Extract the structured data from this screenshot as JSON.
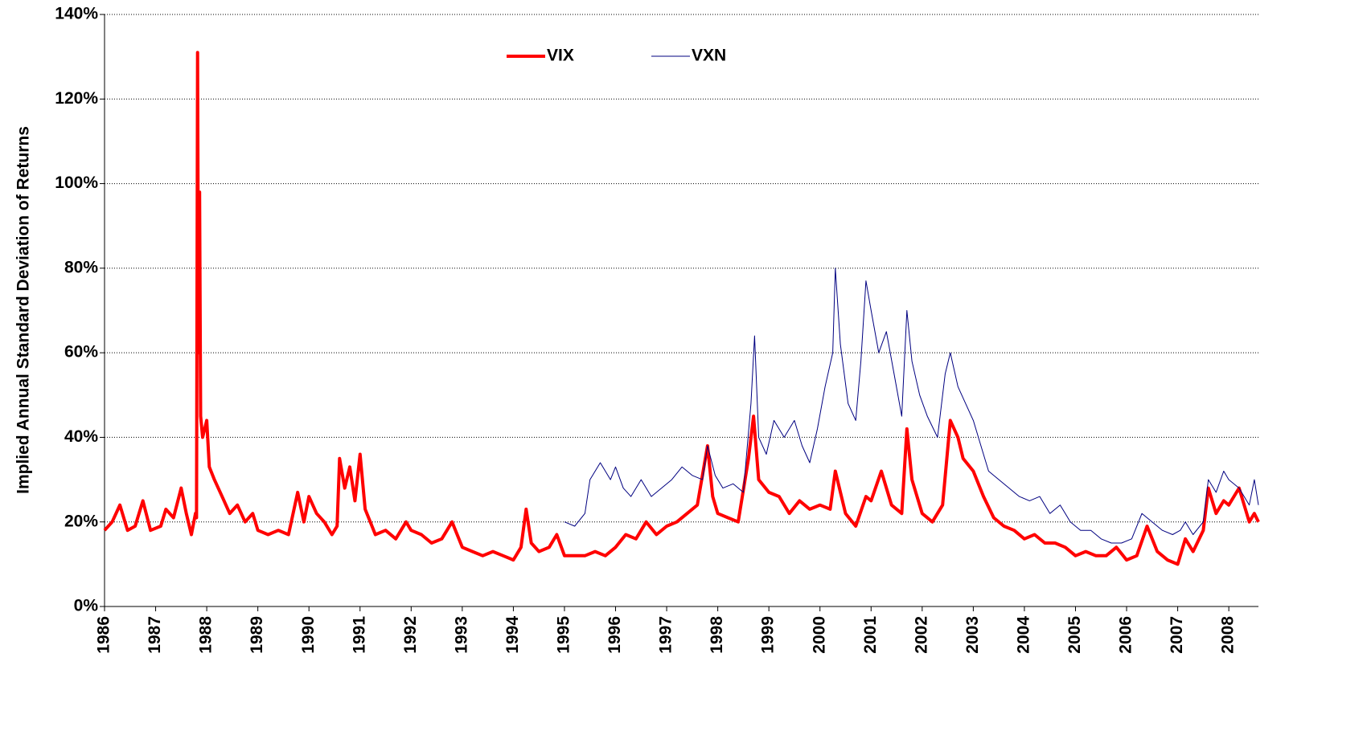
{
  "chart_data": {
    "type": "line",
    "y_label": "Implied Annual Standard Deviation of Returns",
    "xlim": [
      1986,
      2008.58
    ],
    "xticks": [
      1986,
      1987,
      1988,
      1989,
      1990,
      1991,
      1992,
      1993,
      1994,
      1995,
      1996,
      1997,
      1998,
      1999,
      2000,
      2001,
      2002,
      2003,
      2004,
      2005,
      2006,
      2007,
      2008
    ],
    "ylim": [
      0,
      140
    ],
    "yticks": [
      {
        "value": 0,
        "label": "0%"
      },
      {
        "value": 20,
        "label": "20%"
      },
      {
        "value": 40,
        "label": "40%"
      },
      {
        "value": 60,
        "label": "60%"
      },
      {
        "value": 80,
        "label": "80%"
      },
      {
        "value": 100,
        "label": "100%"
      },
      {
        "value": 120,
        "label": "120%"
      },
      {
        "value": 140,
        "label": "140%"
      }
    ],
    "grid": true,
    "legend": "top",
    "series": [
      {
        "name": "VIX",
        "color": "#ff0000",
        "line_width": 4,
        "x": [
          1986.0,
          1986.15,
          1986.3,
          1986.45,
          1986.6,
          1986.75,
          1986.9,
          1987.1,
          1987.2,
          1987.35,
          1987.5,
          1987.6,
          1987.7,
          1987.78,
          1987.8,
          1987.82,
          1987.84,
          1987.86,
          1987.88,
          1987.92,
          1988.0,
          1988.05,
          1988.15,
          1988.3,
          1988.45,
          1988.6,
          1988.75,
          1988.9,
          1989.0,
          1989.2,
          1989.4,
          1989.6,
          1989.78,
          1989.9,
          1990.0,
          1990.15,
          1990.3,
          1990.45,
          1990.55,
          1990.6,
          1990.7,
          1990.8,
          1990.9,
          1991.0,
          1991.1,
          1991.2,
          1991.3,
          1991.5,
          1991.7,
          1991.9,
          1992.0,
          1992.2,
          1992.4,
          1992.6,
          1992.8,
          1993.0,
          1993.2,
          1993.4,
          1993.6,
          1993.8,
          1994.0,
          1994.15,
          1994.25,
          1994.35,
          1994.5,
          1994.7,
          1994.85,
          1995.0,
          1995.2,
          1995.4,
          1995.6,
          1995.8,
          1996.0,
          1996.2,
          1996.4,
          1996.6,
          1996.8,
          1997.0,
          1997.2,
          1997.4,
          1997.6,
          1997.8,
          1997.9,
          1998.0,
          1998.2,
          1998.4,
          1998.6,
          1998.7,
          1998.8,
          1999.0,
          1999.2,
          1999.4,
          1999.6,
          1999.8,
          2000.0,
          2000.2,
          2000.3,
          2000.5,
          2000.7,
          2000.9,
          2001.0,
          2001.2,
          2001.4,
          2001.6,
          2001.7,
          2001.8,
          2002.0,
          2002.2,
          2002.4,
          2002.55,
          2002.7,
          2002.8,
          2003.0,
          2003.2,
          2003.4,
          2003.6,
          2003.8,
          2004.0,
          2004.2,
          2004.4,
          2004.6,
          2004.8,
          2005.0,
          2005.2,
          2005.4,
          2005.6,
          2005.8,
          2006.0,
          2006.2,
          2006.4,
          2006.6,
          2006.8,
          2007.0,
          2007.15,
          2007.3,
          2007.5,
          2007.6,
          2007.75,
          2007.9,
          2008.0,
          2008.2,
          2008.4,
          2008.5,
          2008.58
        ],
        "values": [
          18,
          20,
          24,
          18,
          19,
          25,
          18,
          19,
          23,
          21,
          28,
          22,
          17,
          22,
          21,
          131,
          60,
          98,
          45,
          40,
          44,
          33,
          30,
          26,
          22,
          24,
          20,
          22,
          18,
          17,
          18,
          17,
          27,
          20,
          26,
          22,
          20,
          17,
          19,
          35,
          28,
          33,
          25,
          36,
          23,
          20,
          17,
          18,
          16,
          20,
          18,
          17,
          15,
          16,
          20,
          14,
          13,
          12,
          13,
          12,
          11,
          14,
          23,
          15,
          13,
          14,
          17,
          12,
          12,
          12,
          13,
          12,
          14,
          17,
          16,
          20,
          17,
          19,
          20,
          22,
          24,
          38,
          26,
          22,
          21,
          20,
          35,
          45,
          30,
          27,
          26,
          22,
          25,
          23,
          24,
          23,
          32,
          22,
          19,
          26,
          25,
          32,
          24,
          22,
          42,
          30,
          22,
          20,
          24,
          44,
          40,
          35,
          32,
          26,
          21,
          19,
          18,
          16,
          17,
          15,
          15,
          14,
          12,
          13,
          12,
          12,
          14,
          11,
          12,
          19,
          13,
          11,
          10,
          16,
          13,
          18,
          28,
          22,
          25,
          24,
          28,
          20,
          22,
          20
        ]
      },
      {
        "name": "VXN",
        "color": "#000080",
        "line_width": 1,
        "x": [
          1995.0,
          1995.2,
          1995.4,
          1995.5,
          1995.7,
          1995.9,
          1996.0,
          1996.15,
          1996.3,
          1996.5,
          1996.7,
          1996.9,
          1997.1,
          1997.3,
          1997.5,
          1997.7,
          1997.8,
          1997.95,
          1998.1,
          1998.3,
          1998.5,
          1998.65,
          1998.72,
          1998.8,
          1998.95,
          1999.1,
          1999.3,
          1999.5,
          1999.65,
          1999.8,
          1999.95,
          2000.1,
          2000.25,
          2000.3,
          2000.4,
          2000.55,
          2000.7,
          2000.8,
          2000.9,
          2001.0,
          2001.15,
          2001.3,
          2001.45,
          2001.6,
          2001.7,
          2001.8,
          2001.95,
          2002.1,
          2002.3,
          2002.45,
          2002.55,
          2002.7,
          2002.85,
          2003.0,
          2003.15,
          2003.3,
          2003.5,
          2003.7,
          2003.9,
          2004.1,
          2004.3,
          2004.5,
          2004.7,
          2004.9,
          2005.1,
          2005.3,
          2005.5,
          2005.7,
          2005.9,
          2006.1,
          2006.3,
          2006.5,
          2006.7,
          2006.9,
          2007.05,
          2007.15,
          2007.3,
          2007.5,
          2007.6,
          2007.75,
          2007.9,
          2008.0,
          2008.2,
          2008.4,
          2008.5,
          2008.58
        ],
        "values": [
          20,
          19,
          22,
          30,
          34,
          30,
          33,
          28,
          26,
          30,
          26,
          28,
          30,
          33,
          31,
          30,
          38,
          31,
          28,
          29,
          27,
          48,
          64,
          40,
          36,
          44,
          40,
          44,
          38,
          34,
          42,
          52,
          60,
          80,
          62,
          48,
          44,
          58,
          77,
          70,
          60,
          65,
          55,
          45,
          70,
          58,
          50,
          45,
          40,
          55,
          60,
          52,
          48,
          44,
          38,
          32,
          30,
          28,
          26,
          25,
          26,
          22,
          24,
          20,
          18,
          18,
          16,
          15,
          15,
          16,
          22,
          20,
          18,
          17,
          18,
          20,
          17,
          20,
          30,
          27,
          32,
          30,
          28,
          24,
          30,
          24
        ]
      }
    ]
  }
}
